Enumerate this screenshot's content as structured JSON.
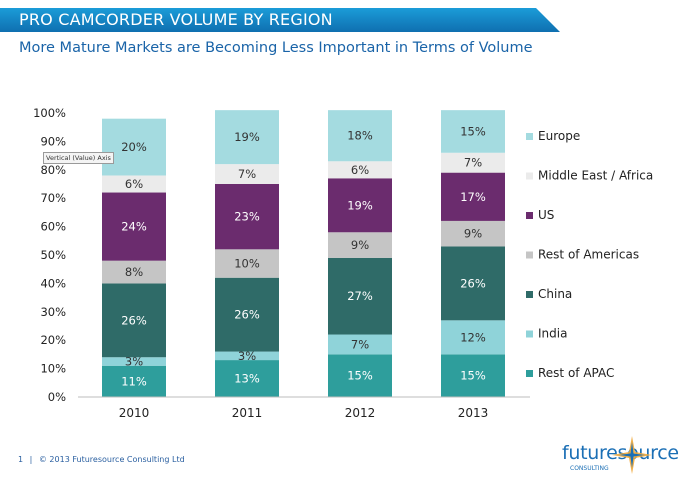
{
  "header": {
    "title": "PRO CAMCORDER VOLUME BY REGION",
    "subtitle": "More Mature Markets are Becoming Less Important in Terms of Volume"
  },
  "tooltip": "Vertical (Value) Axis",
  "footer": {
    "page": "1",
    "divider": "|",
    "copyright": "© 2013 Futuresource Consulting Ltd"
  },
  "logo": {
    "word": "futuresource",
    "sub": "CONSULTING"
  },
  "chart_data": {
    "type": "bar",
    "stacked": true,
    "percent": true,
    "categories": [
      "2010",
      "2011",
      "2012",
      "2013"
    ],
    "ylim": [
      0,
      100
    ],
    "yticks": [
      "0%",
      "10%",
      "20%",
      "30%",
      "40%",
      "50%",
      "60%",
      "70%",
      "80%",
      "90%",
      "100%"
    ],
    "legend_position": "right",
    "grid": false,
    "series": [
      {
        "name": "Rest of APAC",
        "color": "#2e9e9c",
        "values": [
          11,
          13,
          15,
          15
        ],
        "labels": [
          "11%",
          "13%",
          "15%",
          "15%"
        ]
      },
      {
        "name": "India",
        "color": "#8fd3d9",
        "values": [
          3,
          3,
          7,
          12
        ],
        "labels": [
          "3%",
          "3%",
          "7%",
          "12%"
        ]
      },
      {
        "name": "China",
        "color": "#2f6b68",
        "values": [
          26,
          26,
          27,
          26
        ],
        "labels": [
          "26%",
          "26%",
          "27%",
          "26%"
        ]
      },
      {
        "name": "Rest of Americas",
        "color": "#c5c5c5",
        "values": [
          8,
          10,
          9,
          9
        ],
        "labels": [
          "8%",
          "10%",
          "9%",
          "9%"
        ]
      },
      {
        "name": "US",
        "color": "#6b2c6e",
        "values": [
          24,
          23,
          19,
          17
        ],
        "labels": [
          "24%",
          "23%",
          "19%",
          "17%"
        ]
      },
      {
        "name": "Middle East / Africa",
        "color": "#ebebeb",
        "values": [
          6,
          7,
          6,
          7
        ],
        "labels": [
          "6%",
          "7%",
          "6%",
          "7%"
        ]
      },
      {
        "name": "Europe",
        "color": "#a4dbe0",
        "values": [
          20,
          19,
          18,
          15
        ],
        "labels": [
          "20%",
          "19%",
          "18%",
          "15%"
        ]
      }
    ],
    "legend_order": [
      "Europe",
      "Middle East / Africa",
      "US",
      "Rest of Americas",
      "China",
      "India",
      "Rest of APAC"
    ],
    "label_colors": {
      "dark": "#ffffff",
      "light": "#333333"
    }
  }
}
